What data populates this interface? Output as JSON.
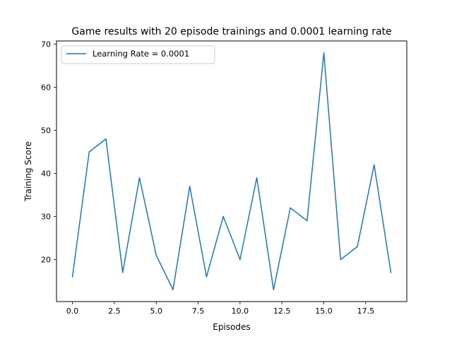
{
  "chart_data": {
    "type": "line",
    "title": "Game results with 20 episode trainings and 0.0001 learning rate",
    "xlabel": "Episodes",
    "ylabel": "Training Score",
    "xlim": [
      -0.95,
      19.95
    ],
    "ylim": [
      10.25,
      70.75
    ],
    "xticks": [
      0.0,
      2.5,
      5.0,
      7.5,
      10.0,
      12.5,
      15.0,
      17.5
    ],
    "xtick_labels": [
      "0.0",
      "2.5",
      "5.0",
      "7.5",
      "10.0",
      "12.5",
      "15.0",
      "17.5"
    ],
    "yticks": [
      20,
      30,
      40,
      50,
      60,
      70
    ],
    "ytick_labels": [
      "20",
      "30",
      "40",
      "50",
      "60",
      "70"
    ],
    "grid": false,
    "legend_position": "top-left",
    "series": [
      {
        "name": "Learning Rate = 0.0001",
        "color": "#1f77b4",
        "x": [
          0,
          1,
          2,
          3,
          4,
          5,
          6,
          7,
          8,
          9,
          10,
          11,
          12,
          13,
          14,
          15,
          16,
          17,
          18,
          19
        ],
        "values": [
          16,
          45,
          48,
          17,
          39,
          21,
          13,
          37,
          16,
          30,
          20,
          39,
          13,
          32,
          29,
          68,
          20,
          23,
          42,
          17
        ]
      }
    ]
  }
}
